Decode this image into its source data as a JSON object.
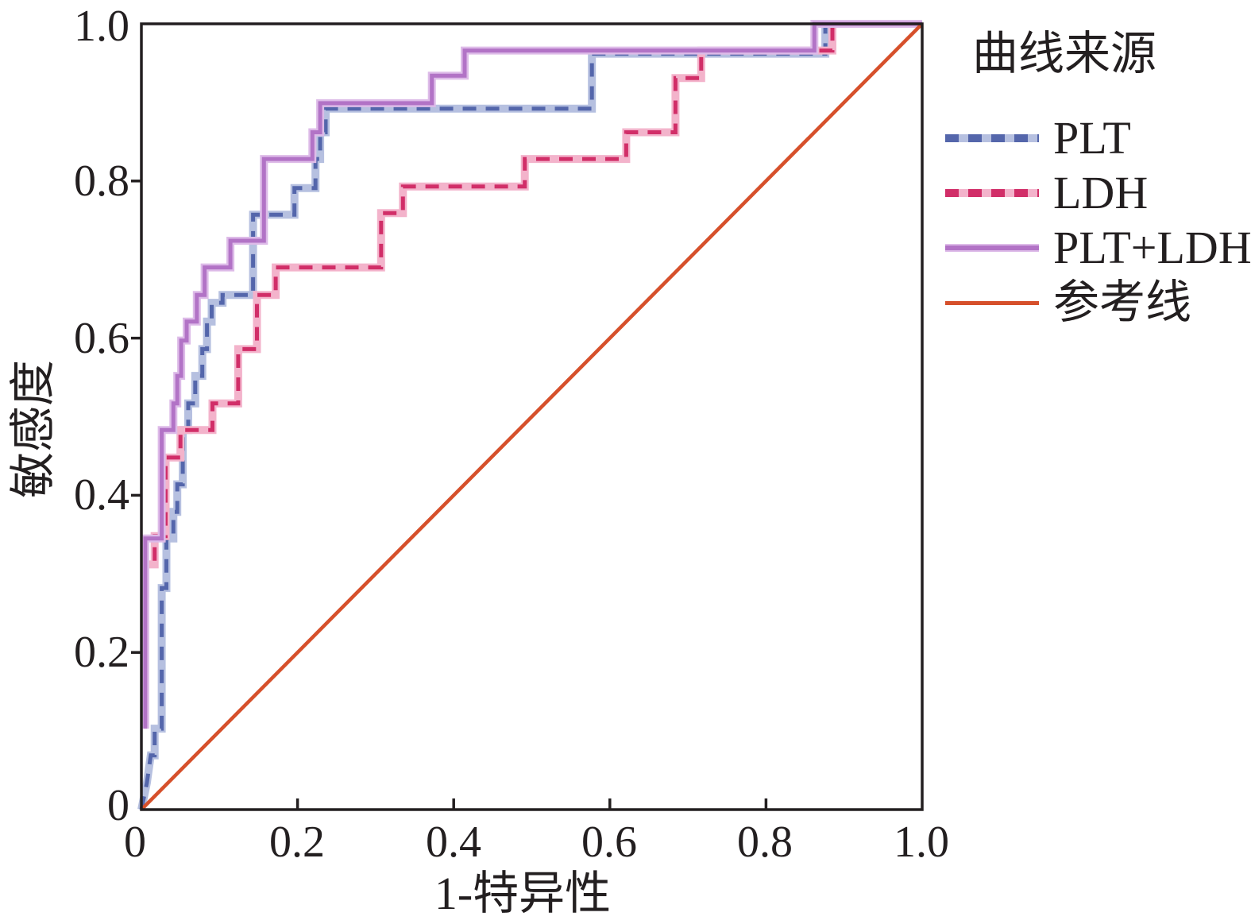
{
  "chart_data": {
    "type": "line",
    "subtype": "roc-step-curves",
    "title": "",
    "xlabel": "1-特异性",
    "ylabel": "敏感度",
    "xlim": [
      0,
      1
    ],
    "ylim": [
      0,
      1
    ],
    "grid": false,
    "legend_title": "曲线来源",
    "legend_position": "right",
    "axis_color": "#231f20",
    "x_ticks": [
      0,
      0.2,
      0.4,
      0.6,
      0.8,
      1.0
    ],
    "x_tick_labels": [
      "0",
      "0.2",
      "0.4",
      "0.6",
      "0.8",
      "1.0"
    ],
    "y_ticks": [
      0,
      0.2,
      0.4,
      0.6,
      0.8,
      1.0
    ],
    "y_tick_labels": [
      "0",
      "0.2",
      "0.4",
      "0.6",
      "0.8",
      "1.0"
    ],
    "series": [
      {
        "name": "PLT",
        "color": "#5466ab",
        "halo": "#b6c0e0",
        "dash": true,
        "points": [
          [
            0,
            0
          ],
          [
            0.007,
            0.034
          ],
          [
            0.012,
            0.069
          ],
          [
            0.017,
            0.069
          ],
          [
            0.017,
            0.103
          ],
          [
            0.026,
            0.103
          ],
          [
            0.026,
            0.282
          ],
          [
            0.032,
            0.282
          ],
          [
            0.032,
            0.345
          ],
          [
            0.041,
            0.345
          ],
          [
            0.041,
            0.379
          ],
          [
            0.046,
            0.379
          ],
          [
            0.046,
            0.414
          ],
          [
            0.053,
            0.414
          ],
          [
            0.053,
            0.483
          ],
          [
            0.06,
            0.483
          ],
          [
            0.06,
            0.517
          ],
          [
            0.069,
            0.517
          ],
          [
            0.069,
            0.552
          ],
          [
            0.078,
            0.552
          ],
          [
            0.078,
            0.586
          ],
          [
            0.084,
            0.586
          ],
          [
            0.084,
            0.621
          ],
          [
            0.09,
            0.621
          ],
          [
            0.09,
            0.645
          ],
          [
            0.104,
            0.645
          ],
          [
            0.104,
            0.655
          ],
          [
            0.143,
            0.655
          ],
          [
            0.143,
            0.757
          ],
          [
            0.196,
            0.757
          ],
          [
            0.196,
            0.791
          ],
          [
            0.223,
            0.791
          ],
          [
            0.223,
            0.828
          ],
          [
            0.229,
            0.828
          ],
          [
            0.229,
            0.862
          ],
          [
            0.236,
            0.862
          ],
          [
            0.236,
            0.892
          ],
          [
            0.577,
            0.892
          ],
          [
            0.577,
            0.962
          ],
          [
            0.876,
            0.962
          ],
          [
            0.876,
            1.0
          ],
          [
            1.0,
            1.0
          ]
        ]
      },
      {
        "name": "LDH",
        "color": "#d12e68",
        "halo": "#f3b3cb",
        "dash": true,
        "points": [
          [
            0.005,
            0.27
          ],
          [
            0.005,
            0.312
          ],
          [
            0.017,
            0.312
          ],
          [
            0.017,
            0.348
          ],
          [
            0.031,
            0.348
          ],
          [
            0.031,
            0.448
          ],
          [
            0.05,
            0.448
          ],
          [
            0.05,
            0.483
          ],
          [
            0.091,
            0.483
          ],
          [
            0.091,
            0.517
          ],
          [
            0.124,
            0.517
          ],
          [
            0.124,
            0.586
          ],
          [
            0.148,
            0.586
          ],
          [
            0.148,
            0.655
          ],
          [
            0.172,
            0.655
          ],
          [
            0.172,
            0.69
          ],
          [
            0.307,
            0.69
          ],
          [
            0.307,
            0.759
          ],
          [
            0.335,
            0.759
          ],
          [
            0.335,
            0.793
          ],
          [
            0.491,
            0.793
          ],
          [
            0.491,
            0.828
          ],
          [
            0.621,
            0.828
          ],
          [
            0.621,
            0.862
          ],
          [
            0.684,
            0.862
          ],
          [
            0.684,
            0.931
          ],
          [
            0.717,
            0.931
          ],
          [
            0.717,
            0.966
          ],
          [
            0.885,
            0.966
          ],
          [
            0.885,
            1.0
          ],
          [
            1.0,
            1.0
          ]
        ]
      },
      {
        "name": "PLT+LDH",
        "color": "#b273c6",
        "halo": "#ddbbe8",
        "dash": false,
        "points": [
          [
            0.005,
            0.103
          ],
          [
            0.005,
            0.345
          ],
          [
            0.026,
            0.345
          ],
          [
            0.026,
            0.483
          ],
          [
            0.041,
            0.483
          ],
          [
            0.041,
            0.517
          ],
          [
            0.046,
            0.517
          ],
          [
            0.046,
            0.552
          ],
          [
            0.051,
            0.552
          ],
          [
            0.051,
            0.597
          ],
          [
            0.058,
            0.597
          ],
          [
            0.058,
            0.621
          ],
          [
            0.071,
            0.621
          ],
          [
            0.071,
            0.655
          ],
          [
            0.081,
            0.655
          ],
          [
            0.081,
            0.69
          ],
          [
            0.114,
            0.69
          ],
          [
            0.114,
            0.724
          ],
          [
            0.157,
            0.724
          ],
          [
            0.157,
            0.828
          ],
          [
            0.219,
            0.828
          ],
          [
            0.219,
            0.862
          ],
          [
            0.229,
            0.862
          ],
          [
            0.229,
            0.899
          ],
          [
            0.372,
            0.899
          ],
          [
            0.372,
            0.934
          ],
          [
            0.414,
            0.934
          ],
          [
            0.414,
            0.966
          ],
          [
            0.862,
            0.966
          ],
          [
            0.862,
            1.0
          ],
          [
            1.0,
            1.0
          ]
        ]
      },
      {
        "name": "参考线",
        "color": "#d6502b",
        "halo": null,
        "dash": false,
        "points": [
          [
            0,
            0
          ],
          [
            1,
            1
          ]
        ]
      }
    ]
  }
}
